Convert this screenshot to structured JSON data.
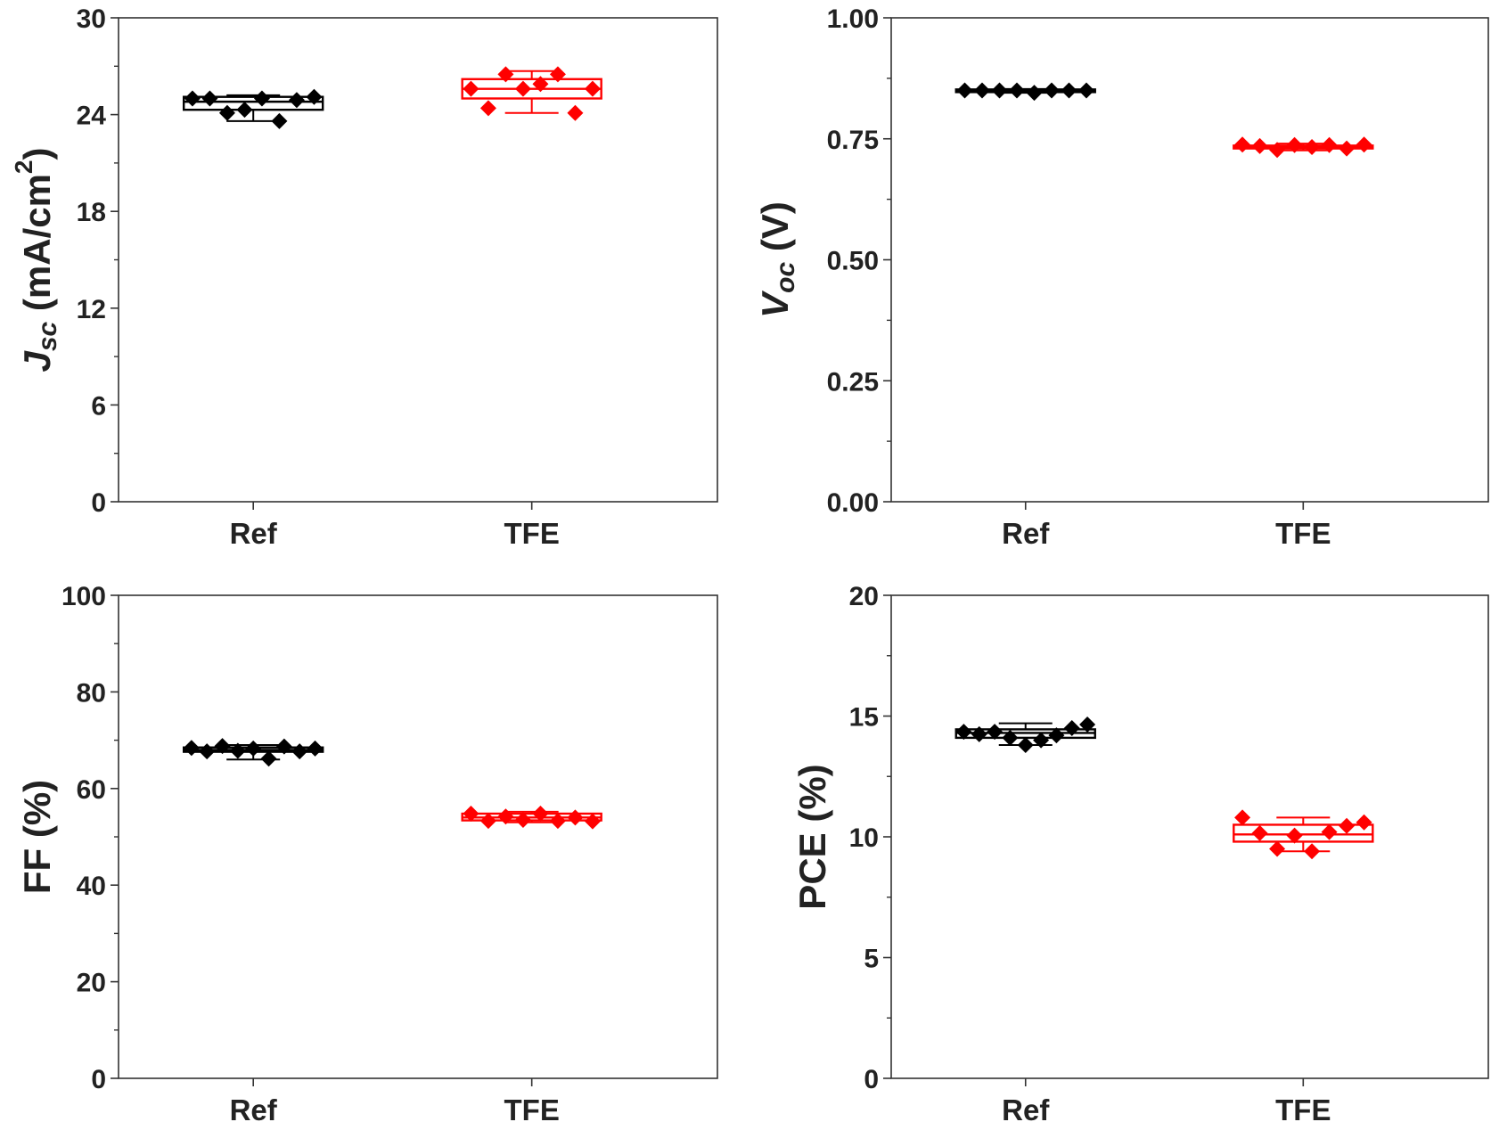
{
  "chart_data": [
    {
      "type": "box",
      "panel": "Jsc",
      "ylabel_main": "J",
      "ylabel_sub": "sc",
      "ylabel_unit": " (mA/cm",
      "ylabel_sup": "2",
      "ylabel_close": ")",
      "ylim": [
        0,
        30
      ],
      "yticks": [
        "0",
        "6",
        "12",
        "18",
        "24",
        "30"
      ],
      "ytick_values": [
        0,
        6,
        12,
        18,
        24,
        30
      ],
      "categories": [
        "Ref",
        "TFE"
      ],
      "series": [
        {
          "category": "Ref",
          "color": "#000000",
          "box": {
            "min": 23.6,
            "q1": 24.3,
            "median": 24.8,
            "q3": 25.1,
            "max": 25.2
          },
          "points": [
            25.0,
            25.0,
            24.1,
            24.3,
            25.0,
            23.6,
            24.9,
            25.1
          ]
        },
        {
          "category": "TFE",
          "color": "#ff0000",
          "box": {
            "min": 24.1,
            "q1": 25.0,
            "median": 25.6,
            "q3": 26.2,
            "max": 26.7
          },
          "points": [
            25.6,
            24.4,
            26.5,
            25.6,
            25.9,
            26.5,
            24.1,
            25.6
          ]
        }
      ]
    },
    {
      "type": "box",
      "panel": "Voc",
      "ylabel_main": "V",
      "ylabel_sub": "oc",
      "ylabel_unit": " (V)",
      "ylabel_sup": "",
      "ylabel_close": "",
      "ylim": [
        0,
        1
      ],
      "yticks": [
        "0.00",
        "0.25",
        "0.50",
        "0.75",
        "1.00"
      ],
      "ytick_values": [
        0,
        0.25,
        0.5,
        0.75,
        1.0
      ],
      "categories": [
        "Ref",
        "TFE"
      ],
      "series": [
        {
          "category": "Ref",
          "color": "#000000",
          "box": {
            "min": 0.845,
            "q1": 0.848,
            "median": 0.85,
            "q3": 0.852,
            "max": 0.853
          },
          "points": [
            0.85,
            0.85,
            0.85,
            0.85,
            0.845,
            0.85,
            0.85,
            0.85
          ]
        },
        {
          "category": "TFE",
          "color": "#ff0000",
          "box": {
            "min": 0.726,
            "q1": 0.73,
            "median": 0.733,
            "q3": 0.736,
            "max": 0.74
          },
          "points": [
            0.738,
            0.735,
            0.727,
            0.737,
            0.733,
            0.737,
            0.73,
            0.738
          ]
        }
      ]
    },
    {
      "type": "box",
      "panel": "FF",
      "ylabel_main": "FF (%)",
      "ylabel_sub": "",
      "ylabel_unit": "",
      "ylabel_sup": "",
      "ylabel_close": "",
      "ylim": [
        0,
        100
      ],
      "yticks": [
        "0",
        "20",
        "40",
        "60",
        "80",
        "100"
      ],
      "ytick_values": [
        0,
        20,
        40,
        60,
        80,
        100
      ],
      "categories": [
        "Ref",
        "TFE"
      ],
      "series": [
        {
          "category": "Ref",
          "color": "#000000",
          "box": {
            "min": 66.0,
            "q1": 67.6,
            "median": 68.0,
            "q3": 68.5,
            "max": 69.0
          },
          "points": [
            68.4,
            67.7,
            68.8,
            67.8,
            68.3,
            66.2,
            68.7,
            67.7,
            68.3
          ]
        },
        {
          "category": "TFE",
          "color": "#ff0000",
          "box": {
            "min": 53.0,
            "q1": 53.4,
            "median": 54.0,
            "q3": 54.8,
            "max": 55.2
          },
          "points": [
            54.8,
            53.3,
            54.2,
            53.5,
            54.8,
            53.3,
            54.0,
            53.2
          ]
        }
      ]
    },
    {
      "type": "box",
      "panel": "PCE",
      "ylabel_main": "PCE (%)",
      "ylabel_sub": "",
      "ylabel_unit": "",
      "ylabel_sup": "",
      "ylabel_close": "",
      "ylim": [
        0,
        20
      ],
      "yticks": [
        "0",
        "5",
        "10",
        "15",
        "20"
      ],
      "ytick_values": [
        0,
        5,
        10,
        15,
        20
      ],
      "categories": [
        "Ref",
        "TFE"
      ],
      "series": [
        {
          "category": "Ref",
          "color": "#000000",
          "box": {
            "min": 13.8,
            "q1": 14.1,
            "median": 14.3,
            "q3": 14.45,
            "max": 14.7
          },
          "points": [
            14.35,
            14.25,
            14.35,
            14.1,
            13.8,
            14.0,
            14.2,
            14.5,
            14.65
          ]
        },
        {
          "category": "TFE",
          "color": "#ff0000",
          "box": {
            "min": 9.4,
            "q1": 9.8,
            "median": 10.1,
            "q3": 10.5,
            "max": 10.8
          },
          "points": [
            10.8,
            10.15,
            9.5,
            10.05,
            9.4,
            10.2,
            10.45,
            10.6
          ]
        }
      ]
    }
  ]
}
